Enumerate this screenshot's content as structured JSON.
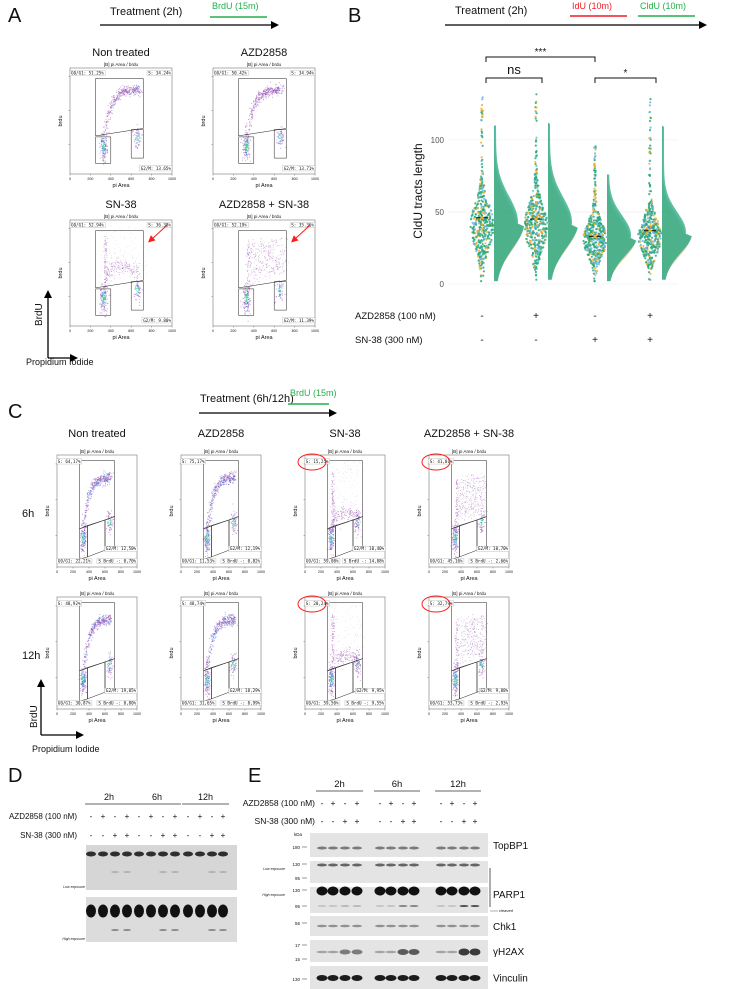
{
  "panel_labels": {
    "a": "A",
    "b": "B",
    "c": "C",
    "d": "D",
    "e": "E"
  },
  "colors": {
    "brdu": "#22b14c",
    "idu": "#ed1c24",
    "cldu": "#22b14c",
    "annotation": "#ff1a1a",
    "dot_green": "#2aa87a",
    "dot_orange": "#f0b030",
    "dot_blue": "#6ab8e0",
    "flow_purple": "#9a4fb0"
  },
  "flow_common": {
    "header": "[B] pi Area / brdu",
    "xlabel": "pi Area",
    "ylabel": "brdu",
    "x_ticks": [
      "0",
      "200",
      "400",
      "600",
      "800",
      "1000"
    ]
  },
  "panel_a": {
    "treatment": "Treatment (2h)",
    "pulse": "BrdU (15m)",
    "axis_y": "BrdU",
    "axis_x": "Propidium Iodide",
    "plots": [
      {
        "title": "Non treated",
        "g1": "G0/G1: 51.25%",
        "s": "S: 34.24%",
        "g2": "G2/M: 13.65%",
        "pattern": "normal",
        "arrow": false
      },
      {
        "title": "AZD2858",
        "g1": "G0/G1: 50.42%",
        "s": "S: 34.94%",
        "g2": "G2/M: 13.71%",
        "pattern": "normal",
        "arrow": false
      },
      {
        "title": "SN-38",
        "g1": "G0/G1: 52.94%",
        "s": "S: 36.38%",
        "g2": "G2/M: 9.80%",
        "pattern": "sn38",
        "arrow": true
      },
      {
        "title": "AZD2858 + SN-38",
        "g1": "G0/G1: 52.19%",
        "s": "S: 35.36%",
        "g2": "G2/M: 11.39%",
        "pattern": "combo",
        "arrow": true
      }
    ]
  },
  "panel_b": {
    "treatment": "Treatment (2h)",
    "pulse1": "IdU (10m)",
    "pulse2": "CldU (10m)",
    "row_labels": [
      "AZD2858  (100 nM)",
      "SN-38  (300 nM)"
    ],
    "azd_signs": [
      "-",
      "+",
      "-",
      "+"
    ],
    "sn38_signs": [
      "-",
      "-",
      "+",
      "+"
    ],
    "significance": [
      {
        "label": "***",
        "from": 0,
        "to": 2
      },
      {
        "label": "ns",
        "from": 0,
        "to": 1
      },
      {
        "label": "*",
        "from": 2,
        "to": 3
      }
    ]
  },
  "chart_data": {
    "type": "scatter",
    "title": "",
    "xlabel": "",
    "ylabel": "CldU tracts length",
    "ylim": [
      0,
      130
    ],
    "y_ticks": [
      "0",
      "50",
      "100"
    ],
    "grid": true,
    "categories": [
      "AZD2858 - / SN-38 -",
      "AZD2858 + / SN-38 -",
      "AZD2858 - / SN-38 +",
      "AZD2858 + / SN-38 +"
    ],
    "means": [
      46,
      45,
      33,
      37
    ],
    "medians": [
      40,
      40,
      31,
      33
    ],
    "max": [
      130,
      132,
      96,
      130
    ],
    "min": [
      2,
      3,
      2,
      3
    ]
  },
  "panel_c": {
    "treatment": "Treatment (6h/12h)",
    "pulse": "BrdU (15m)",
    "columns": [
      "Non treated",
      "AZD2858",
      "SN-38",
      "AZD2858 + SN-38"
    ],
    "rows": [
      "6h",
      "12h"
    ],
    "axis_y": "BrdU",
    "axis_x": "Propidium Iodide",
    "plots": [
      [
        {
          "s": "S: 64,17%",
          "g2": "G2/M: 12,50%",
          "g1": "G0/G1: 22,21%",
          "sneg": "S BrdU -: 0,70%",
          "pattern": "normal",
          "circled": false
        },
        {
          "s": "S: 75,17%",
          "g2": "G2/M: 12,19%",
          "g1": "G0/G1: 11,53%",
          "sneg": "S BrdU -: 0,82%",
          "pattern": "normal",
          "circled": false
        },
        {
          "s": "S: 15,25%",
          "g2": "G2/M: 10,40%",
          "g1": "G0/G1: 59,08%",
          "sneg": "S BrdU -: 14,88%",
          "pattern": "sn38",
          "circled": true
        },
        {
          "s": "S: 41,01%",
          "g2": "G2/M: 10,70%",
          "g1": "G0/G1: 45,10%",
          "sneg": "S BrdU -: 2,66%",
          "pattern": "combo",
          "circled": true
        }
      ],
      [
        {
          "s": "S: 48,92%",
          "g2": "G2/M: 19,05%",
          "g1": "G0/G1: 30,87%",
          "sneg": "S BrdU -: 0,80%",
          "pattern": "normal",
          "circled": false
        },
        {
          "s": "S: 48,74%",
          "g2": "G2/M: 18,29%",
          "g1": "G0/G1: 31,65%",
          "sneg": "S BrdU -: 0,99%",
          "pattern": "normal",
          "circled": false
        },
        {
          "s": "S: 20,24%",
          "g2": "G2/M: 9,95%",
          "g1": "G0/G1: 59,50%",
          "sneg": "S BrdU -: 9,55%",
          "pattern": "sn38",
          "circled": true
        },
        {
          "s": "S: 32,79%",
          "g2": "G2/M: 9,88%",
          "g1": "G0/G1: 53,73%",
          "sneg": "S BrdU -: 2,93%",
          "pattern": "combo",
          "circled": true
        }
      ]
    ]
  },
  "panel_d": {
    "times": [
      "2h",
      "6h",
      "12h"
    ],
    "row_labels": [
      "AZD2858 (100 nM)",
      "SN-38 (300 nM)"
    ],
    "azd_signs": [
      "-",
      "+",
      "-",
      "+",
      "-",
      "+",
      "-",
      "+",
      "-",
      "+",
      "-",
      "+"
    ],
    "sn38_signs": [
      "-",
      "-",
      "+",
      "+",
      "-",
      "-",
      "+",
      "+",
      "-",
      "-",
      "+",
      "+"
    ],
    "exposures": [
      "Low exposure",
      "High exposure"
    ]
  },
  "panel_e": {
    "times": [
      "2h",
      "6h",
      "12h"
    ],
    "row_labels": [
      "AZD2858 (100 nM)",
      "SN-38 (300 nM)"
    ],
    "azd_signs": [
      "-",
      "+",
      "-",
      "+",
      "-",
      "+",
      "-",
      "+",
      "-",
      "+",
      "-",
      "+"
    ],
    "sn38_signs": [
      "-",
      "-",
      "+",
      "+",
      "-",
      "-",
      "+",
      "+",
      "-",
      "-",
      "+",
      "+"
    ],
    "kda_label": "kDa",
    "exposures": [
      "Low exposure",
      "High exposure"
    ],
    "cleaved_label": "cleaved",
    "blots": [
      {
        "protein": "TopBP1",
        "markers": [
          "180"
        ]
      },
      {
        "protein": "PARP1",
        "markers": [
          "130",
          "95"
        ],
        "exposure": 0
      },
      {
        "protein": "",
        "markers": [
          "130",
          "95"
        ],
        "exposure": 1
      },
      {
        "protein": "Chk1",
        "markers": [
          "55"
        ]
      },
      {
        "protein": "γH2AX",
        "markers": [
          "17",
          "15"
        ]
      },
      {
        "protein": "Vinculin",
        "markers": [
          "130"
        ]
      }
    ]
  }
}
